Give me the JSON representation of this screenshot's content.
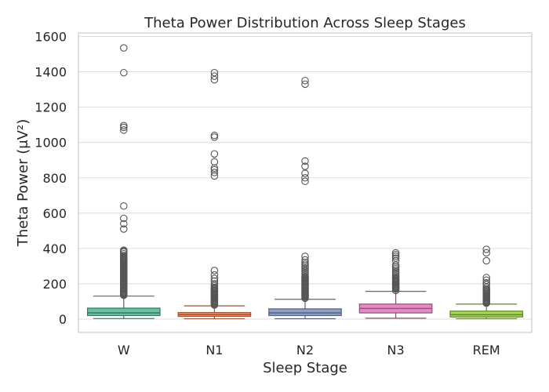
{
  "chart_data": {
    "type": "box",
    "title": "Theta Power Distribution Across Sleep Stages",
    "xlabel": "Sleep Stage",
    "ylabel": "Theta Power (μV²)",
    "ylim": [
      -80,
      1620
    ],
    "yticks": [
      0,
      200,
      400,
      600,
      800,
      1000,
      1200,
      1400,
      1600
    ],
    "grid": "horizontal",
    "categories": [
      "W",
      "N1",
      "N2",
      "N3",
      "REM"
    ],
    "boxes": [
      {
        "category": "W",
        "color": "#66c2a5",
        "whisker_low": 3,
        "q1": 20,
        "median": 35,
        "q3": 62,
        "whisker_high": 130,
        "outliers": [
          135,
          140,
          145,
          150,
          155,
          160,
          165,
          170,
          175,
          180,
          185,
          190,
          195,
          200,
          205,
          210,
          215,
          220,
          225,
          230,
          235,
          240,
          245,
          250,
          255,
          260,
          265,
          270,
          275,
          280,
          285,
          290,
          295,
          300,
          305,
          310,
          315,
          320,
          325,
          330,
          335,
          340,
          345,
          350,
          360,
          370,
          380,
          385,
          390,
          510,
          540,
          570,
          640,
          1070,
          1085,
          1095,
          1395,
          1535
        ]
      },
      {
        "category": "N1",
        "color": "#fc8d62",
        "whisker_low": 2,
        "q1": 15,
        "median": 25,
        "q3": 37,
        "whisker_high": 75,
        "outliers": [
          80,
          85,
          90,
          95,
          100,
          105,
          110,
          115,
          120,
          125,
          130,
          135,
          140,
          145,
          150,
          155,
          160,
          165,
          170,
          175,
          180,
          190,
          200,
          215,
          230,
          250,
          275,
          810,
          830,
          845,
          855,
          890,
          935,
          1030,
          1040,
          1355,
          1375,
          1395
        ]
      },
      {
        "category": "N2",
        "color": "#8da0cb",
        "whisker_low": 2,
        "q1": 20,
        "median": 35,
        "q3": 58,
        "whisker_high": 112,
        "outliers": [
          118,
          125,
          130,
          135,
          140,
          145,
          150,
          155,
          160,
          165,
          170,
          175,
          180,
          185,
          190,
          195,
          200,
          205,
          210,
          215,
          220,
          225,
          230,
          235,
          240,
          250,
          260,
          270,
          280,
          290,
          300,
          310,
          320,
          335,
          355,
          780,
          800,
          825,
          865,
          895,
          1330,
          1350
        ]
      },
      {
        "category": "N3",
        "color": "#e78ac3",
        "whisker_low": 5,
        "q1": 35,
        "median": 60,
        "q3": 85,
        "whisker_high": 157,
        "outliers": [
          162,
          170,
          175,
          180,
          185,
          190,
          195,
          200,
          205,
          210,
          215,
          220,
          225,
          230,
          235,
          245,
          255,
          265,
          275,
          285,
          295,
          305,
          330,
          345,
          355,
          365,
          375
        ]
      },
      {
        "category": "REM",
        "color": "#a6d854",
        "whisker_low": 2,
        "q1": 12,
        "median": 25,
        "q3": 45,
        "whisker_high": 85,
        "outliers": [
          90,
          95,
          100,
          105,
          110,
          115,
          120,
          125,
          130,
          135,
          140,
          145,
          150,
          155,
          160,
          165,
          170,
          180,
          195,
          205,
          220,
          235,
          330,
          375,
          395
        ]
      }
    ]
  }
}
